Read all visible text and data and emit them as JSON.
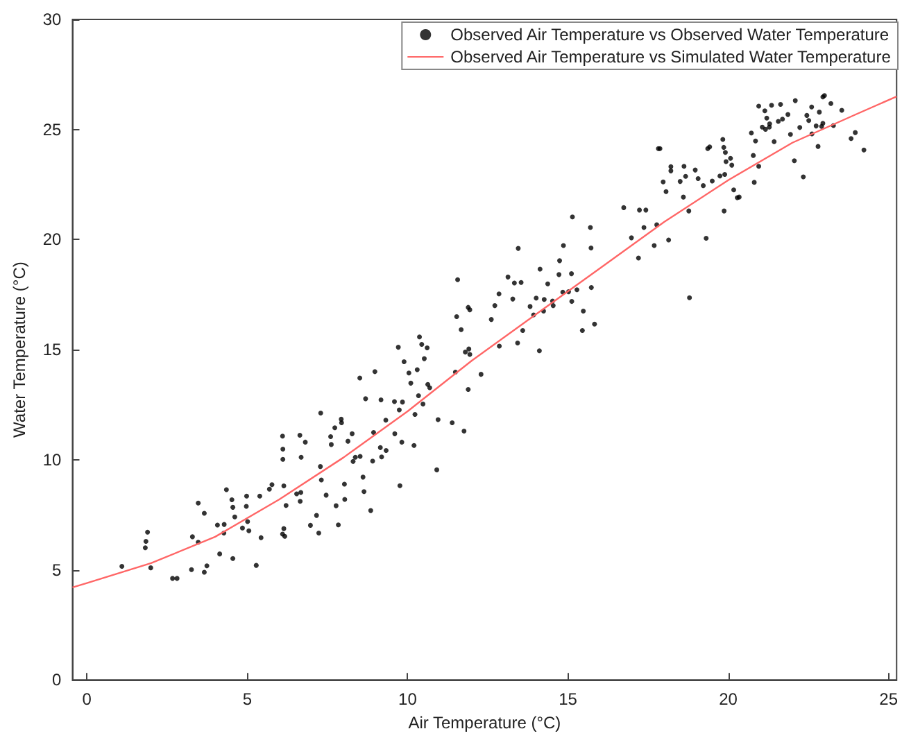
{
  "chart_data": {
    "type": "scatter",
    "xlabel": "Air Temperature (°C)",
    "ylabel": "Water Temperature (°C)",
    "xlim": [
      -0.45,
      25.25
    ],
    "xticks": [
      0,
      5,
      10,
      15,
      20,
      25
    ],
    "ylim": [
      0,
      30
    ],
    "yticks": [
      0,
      5,
      10,
      15,
      20,
      25,
      30
    ],
    "grid": false,
    "legend": "top right",
    "series": [
      {
        "name": "Observed Air Temperature vs Observed Water Temperature",
        "type": "scatter",
        "marker": "circle",
        "color": "#000000",
        "x": [
          1.09,
          1.82,
          1.84,
          1.89,
          1.99,
          2.67,
          2.81,
          3.26,
          3.29,
          3.47,
          3.47,
          3.66,
          3.66,
          3.74,
          4.07,
          4.14,
          4.27,
          4.28,
          4.35,
          4.52,
          4.55,
          4.61,
          4.55,
          4.85,
          4.97,
          4.98,
          5.01,
          5.05,
          5.28,
          5.39,
          5.43,
          5.69,
          5.77,
          6.1,
          6.11,
          6.11,
          6.14,
          6.1,
          6.14,
          6.17,
          6.21,
          6.64,
          6.81,
          6.68,
          6.54,
          6.67,
          6.65,
          6.97,
          7.16,
          7.23,
          7.29,
          7.28,
          7.31,
          7.46,
          7.6,
          7.62,
          7.73,
          7.93,
          7.94,
          7.77,
          7.84,
          8.04,
          8.03,
          8.14,
          8.27,
          8.3,
          8.37,
          8.52,
          8.51,
          8.69,
          8.61,
          8.64,
          8.85,
          8.98,
          8.91,
          9.15,
          9.19,
          9.33,
          9.32,
          8.94,
          9.17,
          9.59,
          9.84,
          9.74,
          9.71,
          9.89,
          10.04,
          9.6,
          9.82,
          9.76,
          10.1,
          10.23,
          10.3,
          10.2,
          10.37,
          10.44,
          10.61,
          10.52,
          10.63,
          10.69,
          10.34,
          10.48,
          10.95,
          11.39,
          10.91,
          11.76,
          11.49,
          11.89,
          12.29,
          11.56,
          11.53,
          11.67,
          11.89,
          11.94,
          11.8,
          11.91,
          11.94,
          12.61,
          12.72,
          12.85,
          12.86,
          13.13,
          13.33,
          13.28,
          13.54,
          13.45,
          13.43,
          13.59,
          13.82,
          13.93,
          14.01,
          14.13,
          14.11,
          14.26,
          14.24,
          14.37,
          14.52,
          14.54,
          14.74,
          14.72,
          14.86,
          14.84,
          15.02,
          15.14,
          15.12,
          15.28,
          15.11,
          15.48,
          15.45,
          15.83,
          15.7,
          15.73,
          15.72,
          16.74,
          16.98,
          17.23,
          17.43,
          17.2,
          17.37,
          17.69,
          17.77,
          18.14,
          17.82,
          17.87,
          17.97,
          18.06,
          18.21,
          18.21,
          18.5,
          18.6,
          18.62,
          18.67,
          18.77,
          18.79,
          18.97,
          19.06,
          19.22,
          19.31,
          19.36,
          19.42,
          19.5,
          19.74,
          19.89,
          19.83,
          19.86,
          19.91,
          19.93,
          20.07,
          20.11,
          19.87,
          20.17,
          20.28,
          20.34,
          20.72,
          20.78,
          20.81,
          20.85,
          20.95,
          20.95,
          21.06,
          21.14,
          21.16,
          21.2,
          21.28,
          21.29,
          21.35,
          21.43,
          21.56,
          21.63,
          21.69,
          21.86,
          21.94,
          22.06,
          22.09,
          22.23,
          22.34,
          22.45,
          22.51,
          22.6,
          22.61,
          22.74,
          22.8,
          22.84,
          22.91,
          22.95,
          23.0,
          22.95,
          23.2,
          23.28,
          23.54,
          23.83,
          23.96,
          24.23
        ],
        "values": [
          5.16,
          6.0,
          6.29,
          6.71,
          5.09,
          4.61,
          4.61,
          5.01,
          6.5,
          6.25,
          8.03,
          7.57,
          4.89,
          5.18,
          7.03,
          5.72,
          6.67,
          7.06,
          8.64,
          8.18,
          7.84,
          7.4,
          5.51,
          6.9,
          7.88,
          8.35,
          7.19,
          6.77,
          5.2,
          8.35,
          6.46,
          8.66,
          8.87,
          11.07,
          10.48,
          10.02,
          8.81,
          6.62,
          6.87,
          6.52,
          7.92,
          11.11,
          10.8,
          10.11,
          8.45,
          8.51,
          8.11,
          7.02,
          7.47,
          6.67,
          12.12,
          9.69,
          9.08,
          8.39,
          11.05,
          10.69,
          11.45,
          11.84,
          11.68,
          7.91,
          7.04,
          8.2,
          8.89,
          10.84,
          11.18,
          9.92,
          10.11,
          10.15,
          13.71,
          12.77,
          9.21,
          8.55,
          7.69,
          14.0,
          9.94,
          10.55,
          10.13,
          10.42,
          11.8,
          11.24,
          12.72,
          12.64,
          12.62,
          12.26,
          15.11,
          14.45,
          13.94,
          11.18,
          10.8,
          8.82,
          13.48,
          12.06,
          14.09,
          10.65,
          15.58,
          15.24,
          15.08,
          14.59,
          13.42,
          13.27,
          12.91,
          12.53,
          11.82,
          11.68,
          9.54,
          11.3,
          13.98,
          13.19,
          13.88,
          18.18,
          16.5,
          15.91,
          16.92,
          16.81,
          14.89,
          15.03,
          14.78,
          16.37,
          17.0,
          17.53,
          15.16,
          18.3,
          18.03,
          17.3,
          18.05,
          19.6,
          15.3,
          15.87,
          16.96,
          16.58,
          17.34,
          18.66,
          14.95,
          17.28,
          16.75,
          17.99,
          17.21,
          17.0,
          19.04,
          18.41,
          19.73,
          17.61,
          17.63,
          21.03,
          17.19,
          17.72,
          18.45,
          16.75,
          15.87,
          16.16,
          20.55,
          17.82,
          19.62,
          21.45,
          20.08,
          21.34,
          21.34,
          19.16,
          20.55,
          19.73,
          20.67,
          19.98,
          24.13,
          24.13,
          22.62,
          22.18,
          23.31,
          23.12,
          22.64,
          21.93,
          23.33,
          22.87,
          21.3,
          17.36,
          23.16,
          22.77,
          22.45,
          20.06,
          24.13,
          24.21,
          22.66,
          22.89,
          22.96,
          24.55,
          24.19,
          23.96,
          23.54,
          23.69,
          23.38,
          21.3,
          22.26,
          21.9,
          21.93,
          24.84,
          23.82,
          22.6,
          24.48,
          23.33,
          26.06,
          25.11,
          25.85,
          25.01,
          25.52,
          25.11,
          25.26,
          26.1,
          24.45,
          25.37,
          26.14,
          25.47,
          25.68,
          24.78,
          23.58,
          26.31,
          25.09,
          22.85,
          25.64,
          25.41,
          26.02,
          24.8,
          25.16,
          24.23,
          25.79,
          25.14,
          26.48,
          26.54,
          25.28,
          26.18,
          25.18,
          25.87,
          24.59,
          24.86,
          24.07
        ]
      },
      {
        "name": "Observed Air Temperature vs Simulated Water Temperature",
        "type": "line",
        "marker": "none",
        "color": "#ff6666",
        "x": [
          -0.45,
          0,
          2,
          4,
          6,
          8,
          10,
          12,
          14,
          16,
          18,
          20,
          22,
          24,
          25.25
        ],
        "values": [
          4.2,
          4.4,
          5.3,
          6.5,
          8.2,
          10.1,
          12.2,
          14.5,
          16.6,
          18.7,
          20.8,
          22.7,
          24.4,
          25.7,
          26.5
        ]
      }
    ]
  }
}
